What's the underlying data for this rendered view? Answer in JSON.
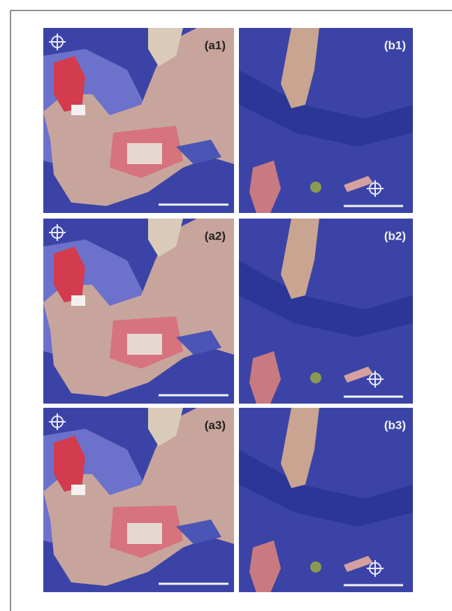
{
  "panels": [
    {
      "label": "(a1)"
    },
    {
      "label": "(b1)"
    },
    {
      "label": "(a2)"
    },
    {
      "label": "(b2)"
    },
    {
      "label": "(a3)"
    },
    {
      "label": "(b3)"
    }
  ]
}
